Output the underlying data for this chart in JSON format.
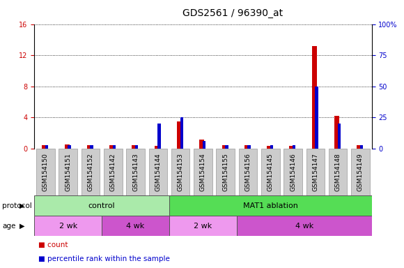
{
  "title": "GDS2561 / 96390_at",
  "samples": [
    "GSM154150",
    "GSM154151",
    "GSM154152",
    "GSM154142",
    "GSM154143",
    "GSM154144",
    "GSM154153",
    "GSM154154",
    "GSM154155",
    "GSM154156",
    "GSM154145",
    "GSM154146",
    "GSM154147",
    "GSM154148",
    "GSM154149"
  ],
  "count_values": [
    0.45,
    0.55,
    0.5,
    0.5,
    0.5,
    0.4,
    3.5,
    1.2,
    0.5,
    0.5,
    0.4,
    0.4,
    13.2,
    4.2,
    0.5
  ],
  "percentile_values": [
    3,
    3,
    3,
    3,
    3,
    20,
    25,
    6,
    3,
    3,
    3,
    3,
    50,
    20,
    3
  ],
  "left_ylim": [
    0,
    16
  ],
  "right_ylim": [
    0,
    100
  ],
  "left_yticks": [
    0,
    4,
    8,
    12,
    16
  ],
  "right_yticks": [
    0,
    25,
    50,
    75,
    100
  ],
  "right_yticklabels": [
    "0",
    "25",
    "50",
    "75",
    "100%"
  ],
  "count_color": "#cc0000",
  "percentile_color": "#0000cc",
  "col_bg_color": "#cccccc",
  "col_bg_edge": "#999999",
  "protocol_groups": [
    {
      "label": "control",
      "start": 0,
      "end": 6,
      "color": "#aaeaaa"
    },
    {
      "label": "MAT1 ablation",
      "start": 6,
      "end": 15,
      "color": "#55dd55"
    }
  ],
  "age_groups": [
    {
      "label": "2 wk",
      "start": 0,
      "end": 3,
      "color": "#ee99ee"
    },
    {
      "label": "4 wk",
      "start": 3,
      "end": 6,
      "color": "#cc55cc"
    },
    {
      "label": "2 wk",
      "start": 6,
      "end": 9,
      "color": "#ee99ee"
    },
    {
      "label": "4 wk",
      "start": 9,
      "end": 15,
      "color": "#cc55cc"
    }
  ],
  "title_fontsize": 10,
  "tick_fontsize": 7,
  "label_fontsize": 7.5,
  "sample_fontsize": 6.5
}
